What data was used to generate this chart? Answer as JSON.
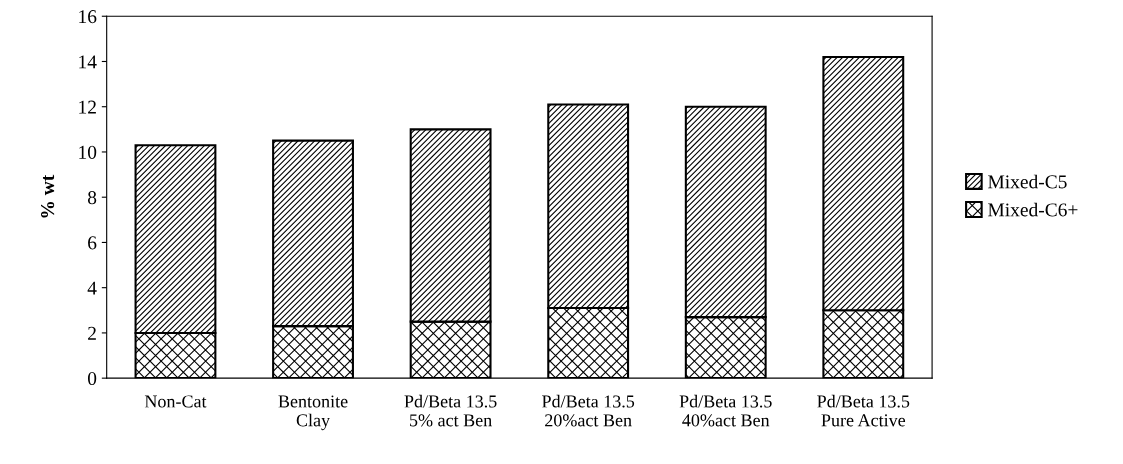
{
  "chart_data": {
    "type": "bar",
    "stacked": true,
    "ylabel": "% wt",
    "categories": [
      "Non-Cat",
      "Bentonite\nClay",
      "Pd/Beta 13.5\n5% act Ben",
      "Pd/Beta 13.5\n20%act Ben",
      "Pd/Beta 13.5\n40%act Ben",
      "Pd/Beta 13.5\nPure Active"
    ],
    "series": [
      {
        "name": "Mixed-C6+",
        "color": "#000000",
        "values": [
          2.0,
          2.3,
          2.5,
          3.1,
          2.7,
          3.0
        ]
      },
      {
        "name": "Mixed-C5",
        "color": "#000000",
        "values": [
          8.3,
          8.2,
          8.5,
          9.0,
          9.3,
          11.2
        ]
      }
    ],
    "ylim": [
      0,
      16
    ],
    "yticks": [
      0,
      2,
      4,
      6,
      8,
      10,
      12,
      14,
      16
    ],
    "grid": false,
    "legend": "right"
  }
}
